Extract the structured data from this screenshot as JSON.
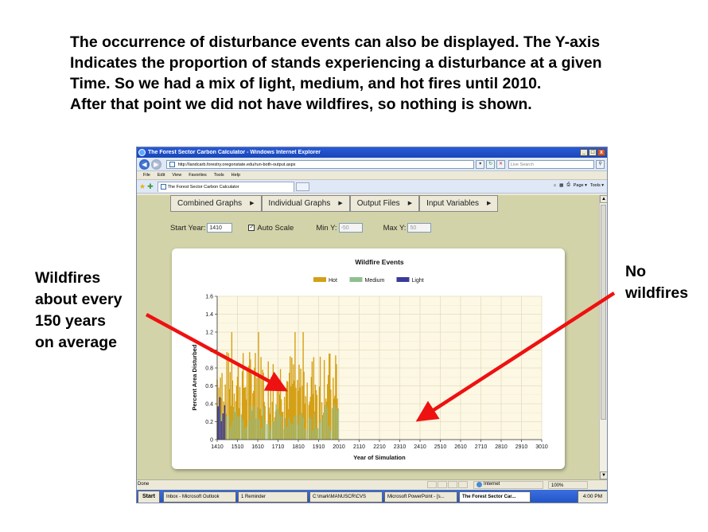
{
  "slide": {
    "heading_lines": [
      "The occurrence of disturbance events can also be displayed. The Y-axis",
      "Indicates the proportion of stands experiencing a disturbance at a given",
      "Time.  So we had a mix of light, medium, and hot fires until 2010.",
      "After that point we did not have wildfires, so nothing is shown."
    ],
    "callout_left_lines": [
      "Wildfires",
      "about every",
      "150 years",
      "on average"
    ],
    "callout_right_lines": [
      "No",
      "wildfires"
    ],
    "arrow_color": "#ee1111"
  },
  "browser": {
    "title": "The Forest Sector Carbon Calculator - Windows Internet Explorer",
    "window_buttons": [
      "_",
      "□",
      "x"
    ],
    "address": "http://landcarb.forestry.oregonstate.edu/run-both-output.aspx",
    "search_placeholder": "Live Search",
    "menu": [
      "File",
      "Edit",
      "View",
      "Favorites",
      "Tools",
      "Help"
    ],
    "tab_title": "The Forest Sector Carbon Calculator",
    "command_bar": [
      "Page ▾",
      "Tools ▾"
    ],
    "status": "Done",
    "zone": "Internet",
    "zoom": "100%"
  },
  "app": {
    "menus": [
      "Combined Graphs",
      "Individual Graphs",
      "Output Files",
      "Input Variables"
    ],
    "start_year_label": "Start Year:",
    "start_year_value": "1410",
    "auto_scale_label": "Auto Scale",
    "auto_scale_checked": "✓",
    "min_y_label": "Min Y:",
    "min_y_value": "-50",
    "max_y_label": "Max Y:",
    "max_y_value": "50"
  },
  "taskbar": {
    "start": "Start",
    "tasks": [
      "Inbox - Microsoft Outlook",
      "1 Reminder",
      "C:\\mark\\MANUSCR\\CVS",
      "Microsoft PowerPoint - [s...",
      "The Forest Sector Car..."
    ],
    "active_index": 4,
    "clock": "4:00 PM"
  },
  "chart_data": {
    "type": "bar",
    "title": "Wildfire Events",
    "xlabel": "Year of Simulation",
    "ylabel": "Percent Area Disturbed",
    "xlim": [
      1410,
      3010
    ],
    "ylim": [
      0,
      1.6
    ],
    "x_ticks": [
      1410,
      1510,
      1610,
      1710,
      1810,
      1910,
      2010,
      2110,
      2210,
      2310,
      2410,
      2510,
      2610,
      2710,
      2810,
      2910,
      3010
    ],
    "y_ticks": [
      0,
      0.2,
      0.4,
      0.6,
      0.8,
      1,
      1.2,
      1.4,
      1.6
    ],
    "y_tick_labels": [
      "0",
      "0.2",
      "0.4",
      "0.6",
      "0.8",
      "1",
      "1.2",
      "1.4",
      "1.6"
    ],
    "grid": true,
    "legend_position": "top-center",
    "series": [
      {
        "name": "Hot",
        "color": "#d4a017",
        "x_range": [
          1410,
          2010
        ],
        "typical_max": 1.0,
        "peak": 1.2
      },
      {
        "name": "Medium",
        "color": "#8fbf8f",
        "x_range": [
          1410,
          2010
        ],
        "typical_max": 0.5
      },
      {
        "name": "Light",
        "color": "#3b3b9a",
        "x_range": [
          1410,
          1450
        ],
        "typical_max": 0.5
      }
    ],
    "note_range_without_events": [
      2010,
      3010
    ]
  }
}
